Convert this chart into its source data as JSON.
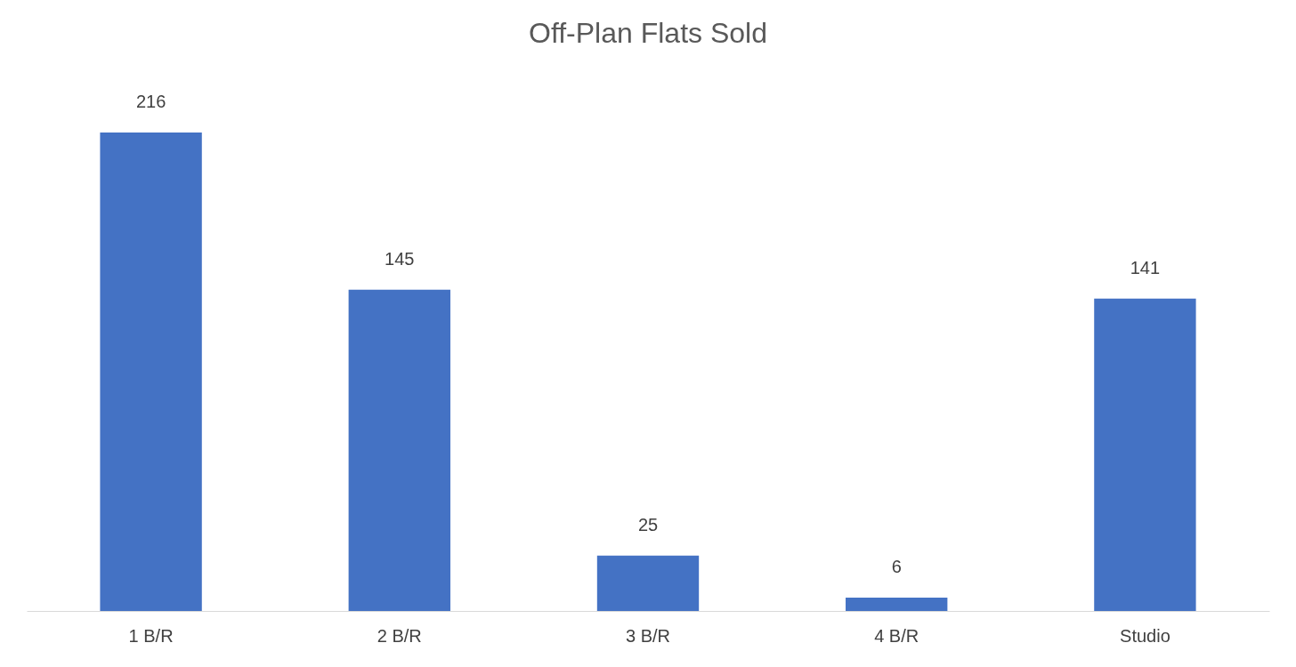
{
  "chart_data": {
    "type": "bar",
    "title": "Off-Plan Flats Sold",
    "categories": [
      "1 B/R",
      "2 B/R",
      "3 B/R",
      "4 B/R",
      "Studio"
    ],
    "values": [
      216,
      145,
      25,
      6,
      141
    ],
    "color": "#4472c4",
    "data_labels": true,
    "grid": false,
    "tick_labels": "x"
  }
}
